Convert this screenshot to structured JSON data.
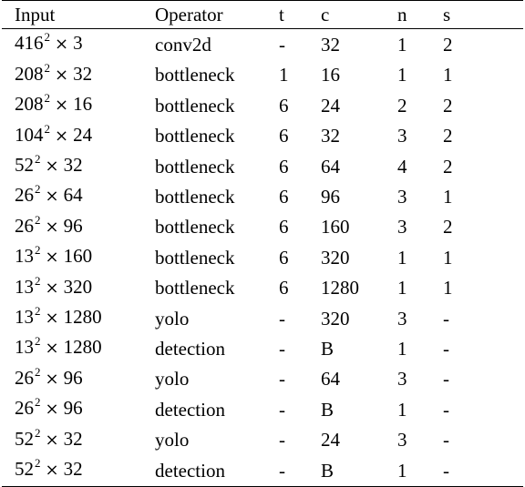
{
  "table": {
    "headers": [
      "Input",
      "Operator",
      "t",
      "c",
      "n",
      "s"
    ],
    "rows": [
      {
        "input_base": "416",
        "input_exp": "2",
        "input_times": "×",
        "input_channels": "3",
        "operator": "conv2d",
        "t": "-",
        "c": "32",
        "n": "1",
        "s": "2"
      },
      {
        "input_base": "208",
        "input_exp": "2",
        "input_times": "×",
        "input_channels": "32",
        "operator": "bottleneck",
        "t": "1",
        "c": "16",
        "n": "1",
        "s": "1"
      },
      {
        "input_base": "208",
        "input_exp": "2",
        "input_times": "×",
        "input_channels": "16",
        "operator": "bottleneck",
        "t": "6",
        "c": "24",
        "n": "2",
        "s": "2"
      },
      {
        "input_base": "104",
        "input_exp": "2",
        "input_times": "×",
        "input_channels": "24",
        "operator": "bottleneck",
        "t": "6",
        "c": "32",
        "n": "3",
        "s": "2"
      },
      {
        "input_base": "52",
        "input_exp": "2",
        "input_times": "×",
        "input_channels": "32",
        "operator": "bottleneck",
        "t": "6",
        "c": "64",
        "n": "4",
        "s": "2"
      },
      {
        "input_base": "26",
        "input_exp": "2",
        "input_times": "×",
        "input_channels": "64",
        "operator": "bottleneck",
        "t": "6",
        "c": "96",
        "n": "3",
        "s": "1"
      },
      {
        "input_base": "26",
        "input_exp": "2",
        "input_times": "×",
        "input_channels": "96",
        "operator": "bottleneck",
        "t": "6",
        "c": "160",
        "n": "3",
        "s": "2"
      },
      {
        "input_base": "13",
        "input_exp": "2",
        "input_times": "×",
        "input_channels": "160",
        "operator": "bottleneck",
        "t": "6",
        "c": "320",
        "n": "1",
        "s": "1"
      },
      {
        "input_base": "13",
        "input_exp": "2",
        "input_times": "×",
        "input_channels": "320",
        "operator": "bottleneck",
        "t": "6",
        "c": "1280",
        "n": "1",
        "s": "1"
      },
      {
        "input_base": "13",
        "input_exp": "2",
        "input_times": "×",
        "input_channels": "1280",
        "operator": "yolo",
        "t": "-",
        "c": "320",
        "n": "3",
        "s": "-"
      },
      {
        "input_base": "13",
        "input_exp": "2",
        "input_times": "×",
        "input_channels": "1280",
        "operator": "detection",
        "t": "-",
        "c": "B",
        "n": "1",
        "s": "-"
      },
      {
        "input_base": "26",
        "input_exp": "2",
        "input_times": "×",
        "input_channels": "96",
        "operator": "yolo",
        "t": "-",
        "c": "64",
        "n": "3",
        "s": "-"
      },
      {
        "input_base": "26",
        "input_exp": "2",
        "input_times": "×",
        "input_channels": "96",
        "operator": "detection",
        "t": "-",
        "c": "B",
        "n": "1",
        "s": "-"
      },
      {
        "input_base": "52",
        "input_exp": "2",
        "input_times": "×",
        "input_channels": "32",
        "operator": "yolo",
        "t": "-",
        "c": "24",
        "n": "3",
        "s": "-"
      },
      {
        "input_base": "52",
        "input_exp": "2",
        "input_times": "×",
        "input_channels": "32",
        "operator": "detection",
        "t": "-",
        "c": "B",
        "n": "1",
        "s": "-"
      }
    ]
  }
}
